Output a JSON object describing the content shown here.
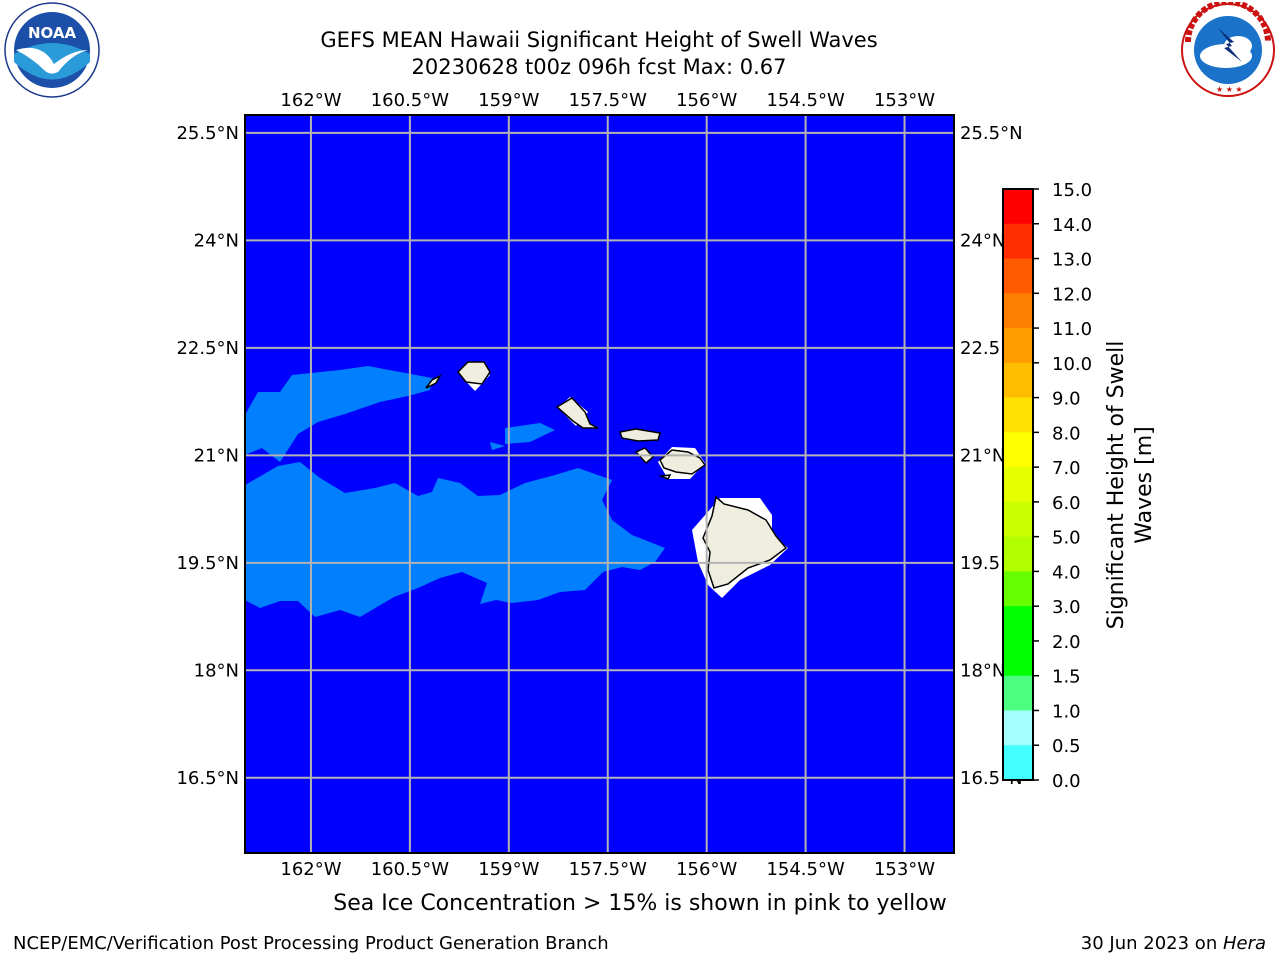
{
  "header": {
    "title_line1": "GEFS MEAN Hawaii Significant Height of Swell Waves",
    "title_line2": "20230628 t00z 096h fcst   Max: 0.67"
  },
  "logos": {
    "left": "noaa-logo",
    "left_text": "NOAA",
    "left_ring_text": "NATIONAL OCEANIC AND ATMOSPHERIC ADMINISTRATION · U.S. DEPARTMENT OF COMMERCE",
    "right": "nws-logo",
    "right_ring_text": "NATIONAL WEATHER SERVICE"
  },
  "map": {
    "lon_labels": [
      "162°W",
      "160.5°W",
      "159°W",
      "157.5°W",
      "156°W",
      "154.5°W",
      "153°W"
    ],
    "lon_values": [
      -162,
      -160.5,
      -159,
      -157.5,
      -156,
      -154.5,
      -153
    ],
    "lat_labels": [
      "25.5°N",
      "24°N",
      "22.5°N",
      "21°N",
      "19.5°N",
      "18°N",
      "16.5°N"
    ],
    "lat_values": [
      25.5,
      24,
      22.5,
      21,
      19.5,
      18,
      16.5
    ],
    "lon_range": [
      -163,
      -152.25
    ],
    "lat_range": [
      15.45,
      25.75
    ],
    "colors": {
      "ocean": "#0000ff",
      "swell_band": "#0080ff",
      "land": "#eeedde",
      "grid": "#b3b3b3"
    }
  },
  "colorbar": {
    "label_line1": "Significant Height of Swell",
    "label_line2": "Waves [m]",
    "ticks": [
      "15.0",
      "14.0",
      "13.0",
      "12.0",
      "11.0",
      "10.0",
      "9.0",
      "8.0",
      "7.0",
      "6.0",
      "5.0",
      "4.0",
      "3.0",
      "2.0",
      "1.5",
      "1.0",
      "0.5",
      "0.0"
    ],
    "colors": [
      "#ff0000",
      "#ff2d00",
      "#ff5a00",
      "#ff8000",
      "#ff9d00",
      "#ffbd00",
      "#ffe000",
      "#ffff00",
      "#e6ff00",
      "#ccff00",
      "#b3ff00",
      "#66ff00",
      "#00ff00",
      "#00ff00",
      "#4dff80",
      "#a6ffff",
      "#44ffff",
      "#00ffff",
      "#0080ff",
      "#0000ff"
    ]
  },
  "footer": {
    "ice_note": "Sea Ice Concentration > 15% is shown in pink to yellow",
    "credit": "NCEP/EMC/Verification Post Processing Product Generation Branch",
    "date_prefix": "30 Jun 2023 on ",
    "machine": "Hera"
  }
}
